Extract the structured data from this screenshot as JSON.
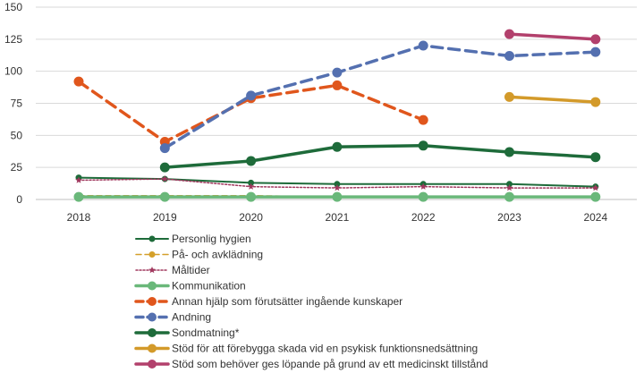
{
  "chart_data": {
    "type": "line",
    "title": "",
    "xlabel": "",
    "ylabel": "",
    "x": [
      "2018",
      "2019",
      "2020",
      "2021",
      "2022",
      "2023",
      "2024"
    ],
    "ylim": [
      0,
      150
    ],
    "yticks": [
      "0",
      "25",
      "50",
      "75",
      "100",
      "125",
      "150"
    ],
    "grid": true,
    "legend_position": "bottom",
    "series": [
      {
        "name": "Personlig hygien",
        "values": [
          17,
          16,
          13,
          12,
          12,
          12,
          10
        ],
        "color": "#1e6b3a",
        "style": "solid",
        "marker": "circle"
      },
      {
        "name": "På- och avklädning",
        "values": [
          3,
          3,
          3,
          2,
          2,
          2,
          2
        ],
        "color": "#d4a02a",
        "style": "dashed",
        "marker": "circle"
      },
      {
        "name": "Måltider",
        "values": [
          15,
          16,
          10,
          9,
          10,
          9,
          9
        ],
        "color": "#a0385e",
        "style": "dotted",
        "marker": "star"
      },
      {
        "name": "Kommunikation",
        "values": [
          2,
          2,
          2,
          2,
          2,
          2,
          2
        ],
        "color": "#6ab87a",
        "style": "solid",
        "marker": "circle"
      },
      {
        "name": "Annan hjälp som förutsätter ingående kunskaper",
        "values": [
          92,
          45,
          79,
          89,
          62,
          null,
          null
        ],
        "color": "#e0561c",
        "style": "dashed",
        "marker": "circle"
      },
      {
        "name": "Andning",
        "values": [
          null,
          40,
          81,
          99,
          120,
          112,
          115
        ],
        "color": "#5470b0",
        "style": "dashed",
        "marker": "circle"
      },
      {
        "name": "Sondmatning*",
        "values": [
          null,
          25,
          30,
          41,
          42,
          37,
          33
        ],
        "color": "#1e6b3a",
        "style": "solid",
        "marker": "circle"
      },
      {
        "name": "Stöd för att förebygga skada vid en psykisk funktionsnedsättning",
        "values": [
          null,
          null,
          null,
          null,
          null,
          80,
          76
        ],
        "color": "#d39a2a",
        "style": "solid",
        "marker": "circle"
      },
      {
        "name": "Stöd som behöver ges löpande på grund av ett medicinskt tillstånd",
        "values": [
          null,
          null,
          null,
          null,
          null,
          129,
          125
        ],
        "color": "#b2406c",
        "style": "solid",
        "marker": "circle"
      }
    ]
  }
}
